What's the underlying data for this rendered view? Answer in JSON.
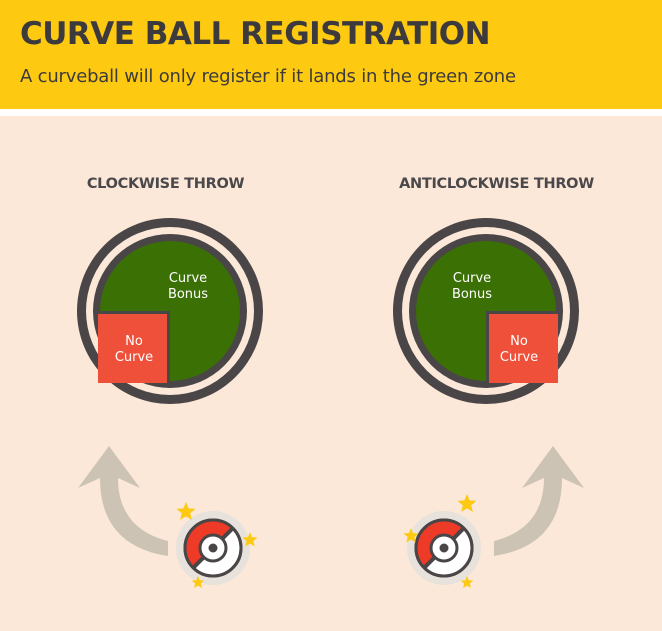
{
  "header": {
    "title": "CURVE BALL REGISTRATION",
    "subtitle": "A curveball will only register if it lands in the green zone"
  },
  "sections": [
    {
      "title": "CLOCKWISE THROW",
      "green_label": [
        "Curve",
        "Bonus"
      ],
      "red_label": [
        "No",
        "Curve"
      ],
      "arrow_direction": "left"
    },
    {
      "title": "ANTICLOCKWISE THROW",
      "green_label": [
        "Curve",
        "Bonus"
      ],
      "red_label": [
        "No",
        "Curve"
      ],
      "arrow_direction": "right"
    }
  ],
  "colors": {
    "header_bg": "#fdca11",
    "panel_bg": "#fbe8d8",
    "ring": "#4a4546",
    "green_zone": "#3b7005",
    "red_zone": "#ee5039",
    "arrow": "#cdc3b5",
    "star": "#fdca11",
    "ball_red": "#ee3b27"
  },
  "icons": [
    "curve-arrow-icon",
    "pokeball-icon",
    "star-icon"
  ]
}
